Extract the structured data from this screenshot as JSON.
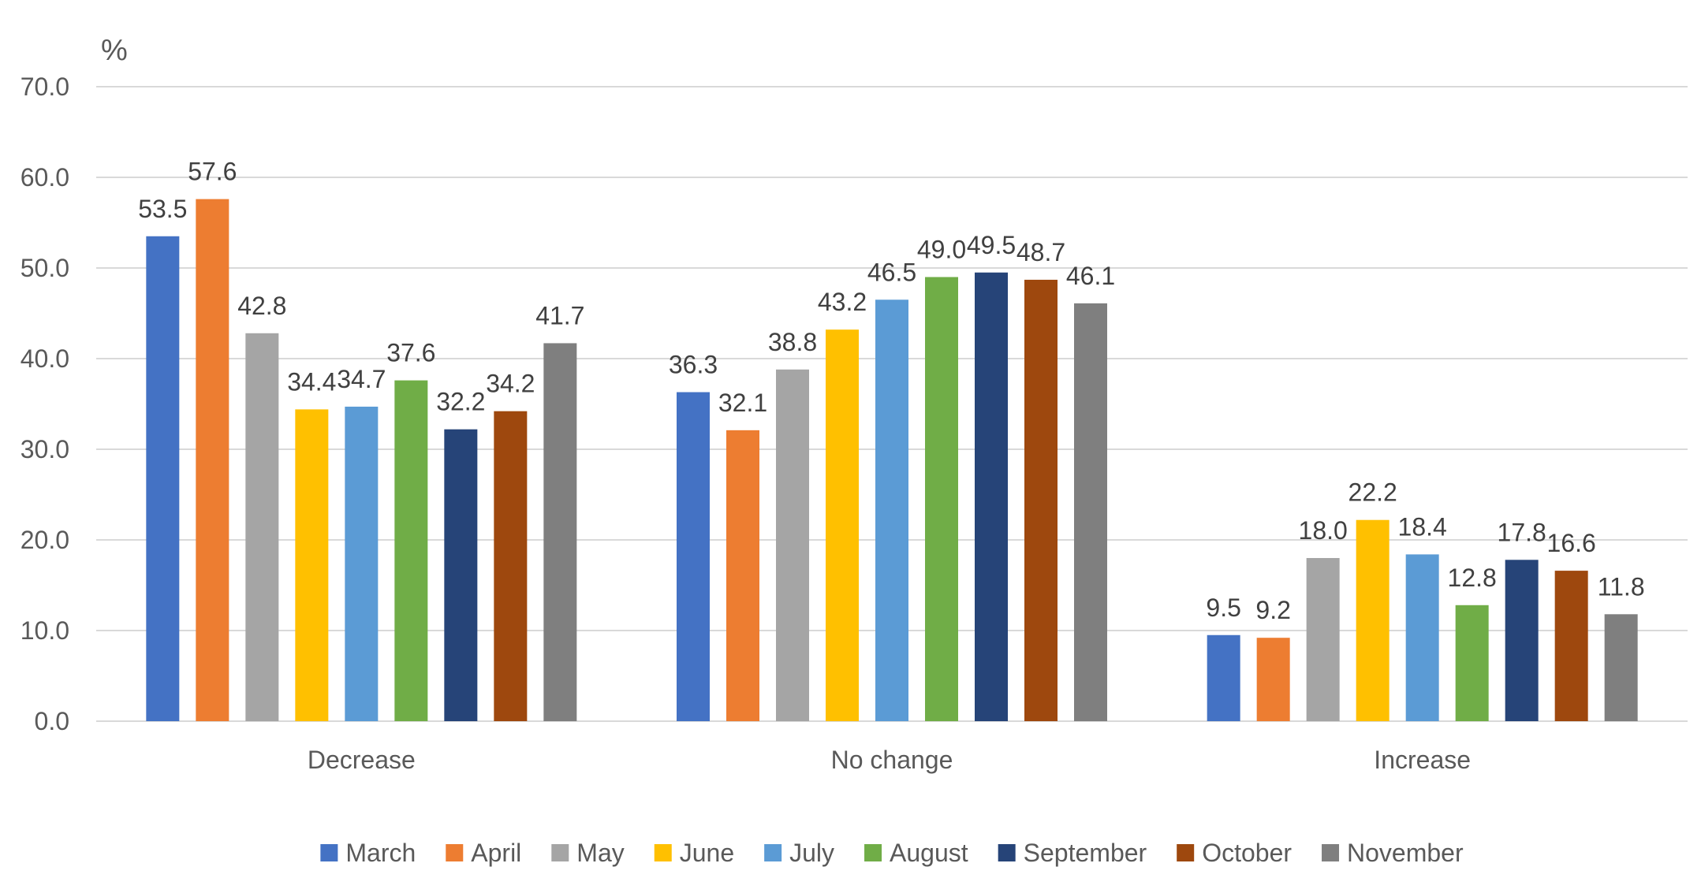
{
  "chart_data": {
    "type": "bar",
    "ylabel": "%",
    "ylim": [
      0,
      70
    ],
    "ytick_labels": [
      "0.0",
      "10.0",
      "20.0",
      "30.0",
      "40.0",
      "50.0",
      "60.0",
      "70.0"
    ],
    "grid": true,
    "legend_position": "bottom",
    "categories": [
      "Decrease",
      "No change",
      "Increase"
    ],
    "series": [
      {
        "name": "March",
        "color": "#4472c4",
        "values": [
          53.5,
          36.3,
          9.5
        ],
        "labels": [
          "53.5",
          "36.3",
          "9.5"
        ]
      },
      {
        "name": "April",
        "color": "#ed7d31",
        "values": [
          57.6,
          32.1,
          9.2
        ],
        "labels": [
          "57.6",
          "32.1",
          "9.2"
        ]
      },
      {
        "name": "May",
        "color": "#a5a5a5",
        "values": [
          42.8,
          38.8,
          18.0
        ],
        "labels": [
          "42.8",
          "38.8",
          "18.0"
        ]
      },
      {
        "name": "June",
        "color": "#ffc000",
        "values": [
          34.4,
          43.2,
          22.2
        ],
        "labels": [
          "34.4",
          "43.2",
          "22.2"
        ]
      },
      {
        "name": "July",
        "color": "#5b9bd5",
        "values": [
          34.7,
          46.5,
          18.4
        ],
        "labels": [
          "34.7",
          "46.5",
          "18.4"
        ]
      },
      {
        "name": "August",
        "color": "#70ad47",
        "values": [
          37.6,
          49.0,
          12.8
        ],
        "labels": [
          "37.6",
          "49.0",
          "12.8"
        ]
      },
      {
        "name": "September",
        "color": "#264478",
        "values": [
          32.2,
          49.5,
          17.8
        ],
        "labels": [
          "32.2",
          "49.5",
          "17.8"
        ]
      },
      {
        "name": "October",
        "color": "#9e480e",
        "values": [
          34.2,
          48.7,
          16.6
        ],
        "labels": [
          "34.2",
          "48.7",
          "16.6"
        ]
      },
      {
        "name": "November",
        "color": "#7f7f7f",
        "values": [
          41.7,
          46.1,
          11.8
        ],
        "labels": [
          "41.7",
          "46.1",
          "11.8"
        ]
      }
    ]
  }
}
